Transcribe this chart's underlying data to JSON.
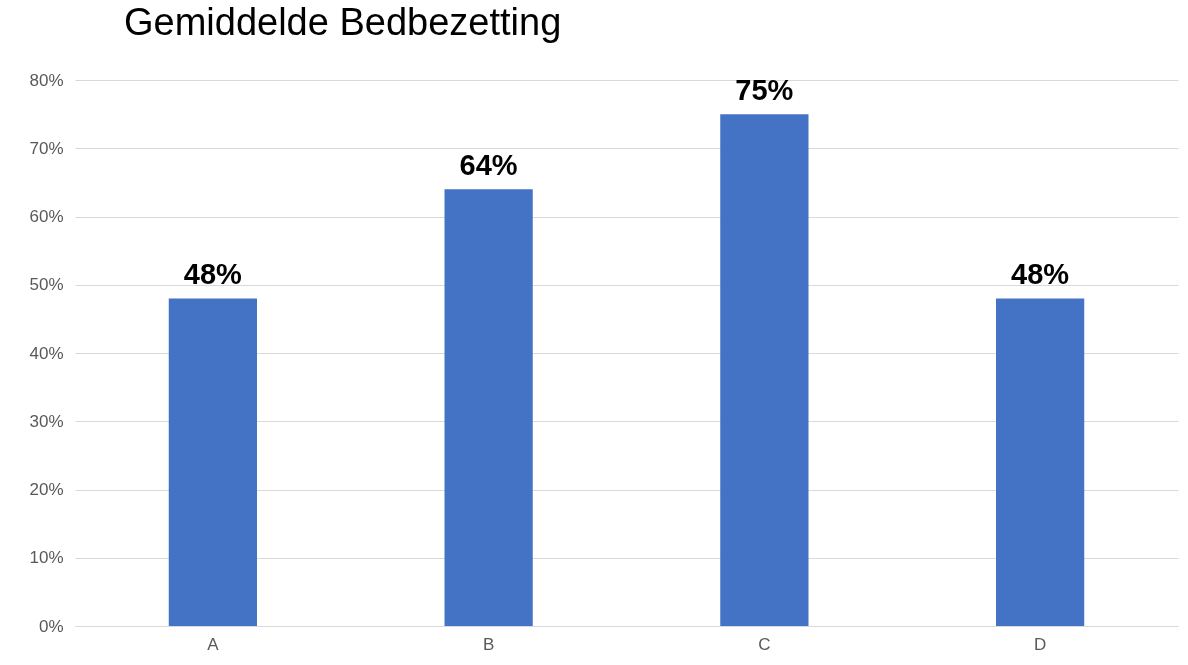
{
  "chart_data": {
    "type": "bar",
    "title": "Gemiddelde Bedbezetting",
    "categories": [
      "A",
      "B",
      "C",
      "D"
    ],
    "values": [
      48,
      64,
      75,
      48
    ],
    "value_labels": [
      "48%",
      "64%",
      "75%",
      "48%"
    ],
    "color": "#4472c4",
    "ylim": [
      0,
      80
    ],
    "yticks": [
      {
        "value": 0,
        "label": "0%"
      },
      {
        "value": 10,
        "label": "10%"
      },
      {
        "value": 20,
        "label": "20%"
      },
      {
        "value": 30,
        "label": "30%"
      },
      {
        "value": 40,
        "label": "40%"
      },
      {
        "value": 50,
        "label": "50%"
      },
      {
        "value": 60,
        "label": "60%"
      },
      {
        "value": 70,
        "label": "70%"
      },
      {
        "value": 80,
        "label": "80%"
      }
    ],
    "grid": "y"
  }
}
